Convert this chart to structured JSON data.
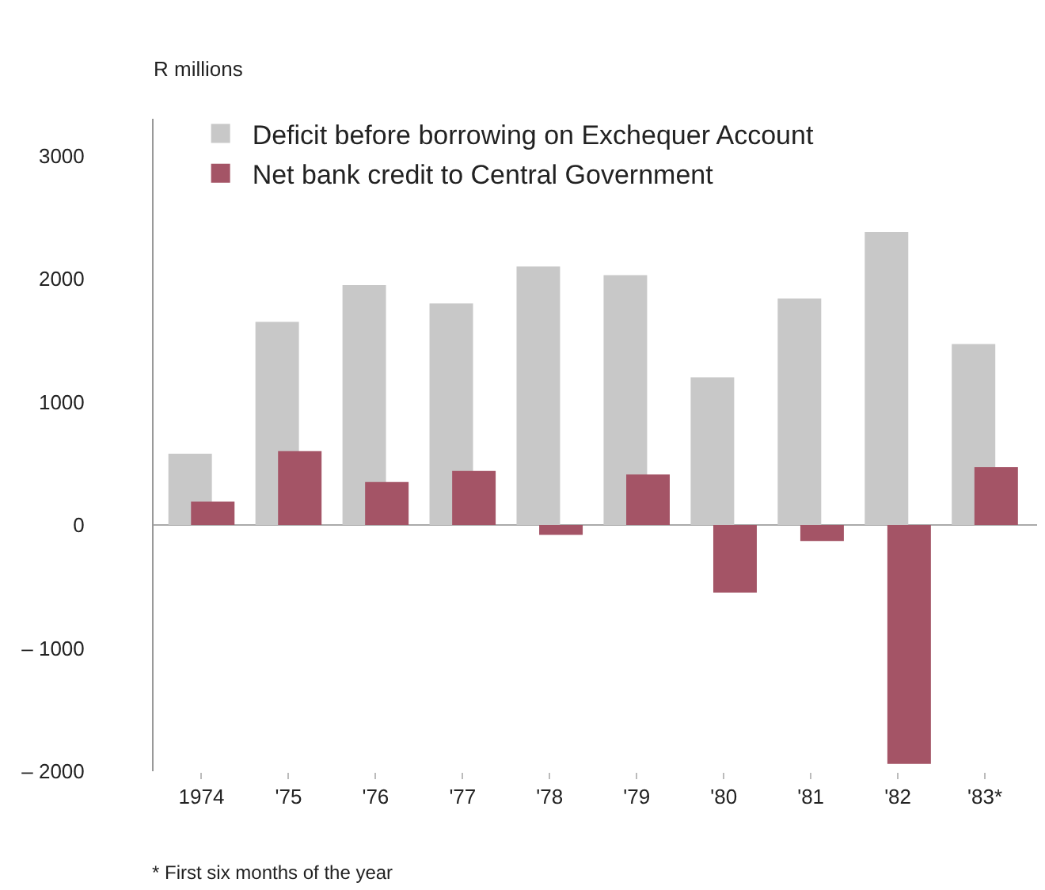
{
  "chart_data": {
    "type": "bar",
    "ylabel": "R millions",
    "categories": [
      "1974",
      "'75",
      "'76",
      "'77",
      "'78",
      "'79",
      "'80",
      "'81",
      "'82",
      "'83*"
    ],
    "series": [
      {
        "name": "Deficit before borrowing on Exchequer Account",
        "color": "#c8c8c8",
        "values": [
          580,
          1650,
          1950,
          1800,
          2100,
          2030,
          1200,
          1840,
          2380,
          1470
        ]
      },
      {
        "name": "Net bank credit to Central Government",
        "color": "#a45466",
        "values": [
          190,
          600,
          350,
          440,
          -80,
          410,
          -550,
          -130,
          -1940,
          470
        ]
      }
    ],
    "ylim": [
      -2000,
      3300
    ],
    "yticks": [
      {
        "value": -2000,
        "label": "– 2000"
      },
      {
        "value": -1000,
        "label": "– 1000"
      },
      0,
      1000,
      2000,
      3000
    ],
    "legend": "top left",
    "annotations": [
      "* First six months of the year"
    ]
  }
}
